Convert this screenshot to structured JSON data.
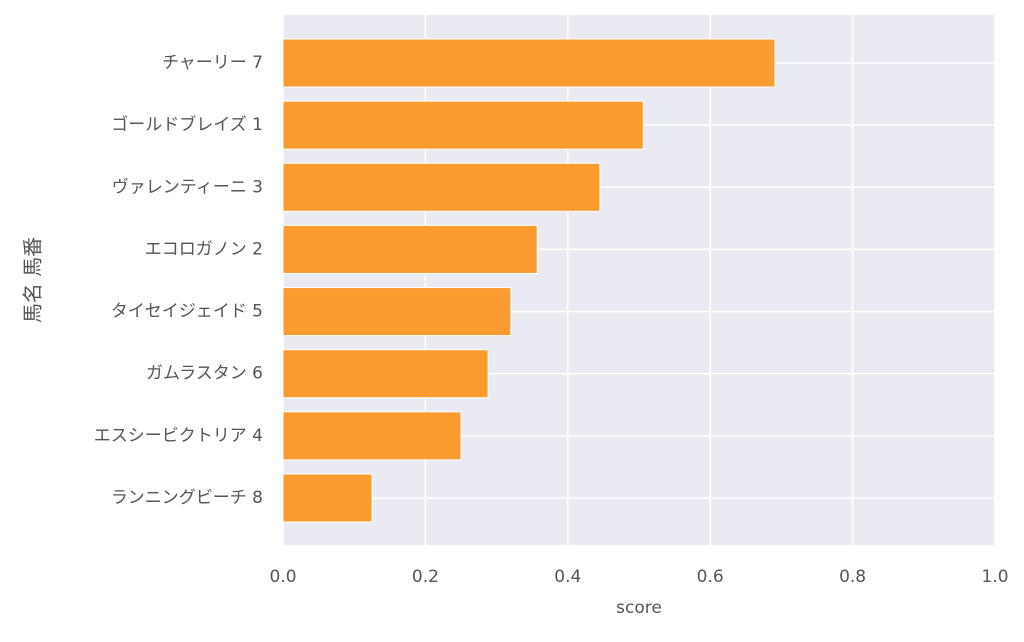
{
  "chart_data": {
    "type": "barh",
    "categories": [
      "チャーリー 7",
      "ゴールドブレイズ 1",
      "ヴァレンティーニ 3",
      "エコロガノン 2",
      "タイセイジェイド 5",
      "ガムラスタン 6",
      "エスシービクトリア 4",
      "ランニングビーチ 8"
    ],
    "values": [
      0.691,
      0.506,
      0.445,
      0.357,
      0.32,
      0.288,
      0.25,
      0.125
    ],
    "color": "#f99b2e",
    "xlabel": "score",
    "ylabel": "馬名 馬番",
    "xlim": [
      0,
      1.0
    ],
    "xticks": [
      {
        "value": 0,
        "label": "0.0"
      },
      0.2,
      0.4,
      0.6,
      0.8,
      {
        "value": 1.0,
        "label": "1.0"
      }
    ],
    "grid": true
  }
}
